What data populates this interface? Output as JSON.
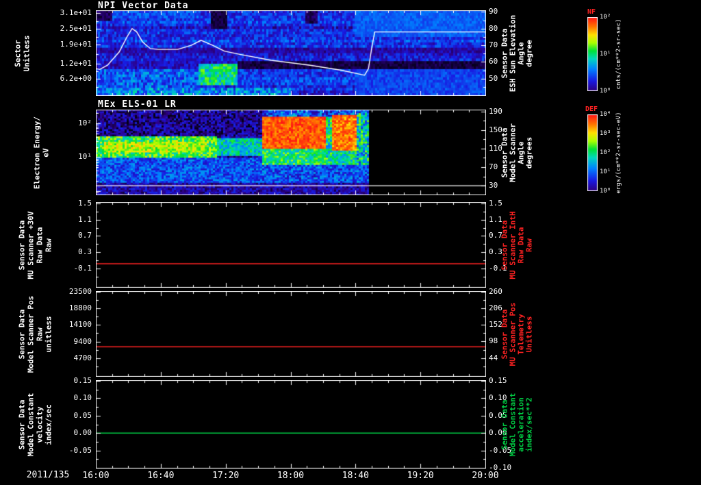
{
  "xaxis": {
    "date_label": "2011/135",
    "tick_labels": [
      "16:00",
      "16:40",
      "17:20",
      "18:00",
      "18:40",
      "19:20",
      "20:00"
    ]
  },
  "colorbars": [
    {
      "label": "NF",
      "label_color": "#ff2222",
      "unit": "cnts/(cm**2-sr-sec)",
      "ticks": [
        {
          "t": "10²",
          "f": 0.0
        },
        {
          "t": "10¹",
          "f": 0.5
        },
        {
          "t": "10⁰",
          "f": 1.0
        }
      ]
    },
    {
      "label": "DEF",
      "label_color": "#ff2222",
      "unit": "ergs/(cm**2-sr-sec-eV)",
      "ticks": [
        {
          "t": "10⁴",
          "f": 0.0
        },
        {
          "t": "10³",
          "f": 0.25
        },
        {
          "t": "10²",
          "f": 0.5
        },
        {
          "t": "10¹",
          "f": 0.75
        },
        {
          "t": "10⁰",
          "f": 1.0
        }
      ]
    }
  ],
  "chart_data": [
    {
      "type": "spectrogram",
      "title": "NPI Vector Data",
      "left_axis": {
        "label_lines": [
          "Sector",
          "Unitless"
        ],
        "color": "#ffffff",
        "scale": "linear",
        "range": [
          0,
          32
        ],
        "ticks": [
          {
            "v": 31,
            "t": "3.1e+01"
          },
          {
            "v": 25,
            "t": "2.5e+01"
          },
          {
            "v": 19,
            "t": "1.9e+01"
          },
          {
            "v": 12,
            "t": "1.2e+01"
          },
          {
            "v": 6.2,
            "t": "6.2e+00"
          }
        ]
      },
      "right_axis": {
        "label_lines": [
          "Sensor Data",
          "ESH Sun Elevation",
          "Angle",
          "degree"
        ],
        "color": "#ffffff",
        "scale": "linear",
        "range": [
          40,
          91
        ],
        "ticks": [
          {
            "v": 90,
            "t": "90"
          },
          {
            "v": 80,
            "t": "80"
          },
          {
            "v": 70,
            "t": "70"
          },
          {
            "v": 60,
            "t": "60"
          },
          {
            "v": 50,
            "t": "50"
          }
        ]
      },
      "overlay": {
        "name": "ESH Sun Elevation Angle",
        "axis": "right",
        "color": "#ffffff",
        "points": [
          [
            0,
            56
          ],
          [
            0.01,
            55.5
          ],
          [
            0.03,
            58
          ],
          [
            0.06,
            66
          ],
          [
            0.08,
            75
          ],
          [
            0.093,
            80
          ],
          [
            0.105,
            78
          ],
          [
            0.12,
            72
          ],
          [
            0.14,
            68
          ],
          [
            0.16,
            67.5
          ],
          [
            0.21,
            67.5
          ],
          [
            0.245,
            70
          ],
          [
            0.27,
            73
          ],
          [
            0.3,
            70
          ],
          [
            0.33,
            66.5
          ],
          [
            0.37,
            64.5
          ],
          [
            0.45,
            61
          ],
          [
            0.55,
            58
          ],
          [
            0.63,
            55
          ],
          [
            0.68,
            52.5
          ],
          [
            0.69,
            52
          ],
          [
            0.7,
            56
          ],
          [
            0.708,
            68
          ],
          [
            0.716,
            78
          ],
          [
            0.75,
            78
          ],
          [
            1,
            78
          ]
        ]
      },
      "spectro": {
        "rows": 32,
        "cols": 190,
        "seed": 11,
        "data_end": 1,
        "base": {
          "v": 0.22,
          "j": 0.1,
          "row_j": 0.07
        },
        "regions": [
          {
            "x0": 0,
            "x1": 0.04,
            "r0": 0,
            "r1": 3,
            "v": 0.05,
            "j": 0.04
          },
          {
            "x0": 0.04,
            "x1": 0.26,
            "r0": 0,
            "r1": 2,
            "v": 0.28,
            "j": 0.08
          },
          {
            "x0": 0.29,
            "x1": 0.335,
            "r0": 0,
            "r1": 6,
            "v": 0.03,
            "j": 0.03
          },
          {
            "x0": 0.535,
            "x1": 0.565,
            "r0": 0,
            "r1": 4,
            "v": 0.05,
            "j": 0.04
          },
          {
            "x0": 0,
            "x1": 1,
            "r0": 14,
            "r1": 15,
            "v": 0.12,
            "j": 0.06
          },
          {
            "x0": 0,
            "x1": 0.36,
            "r0": 19,
            "r1": 21,
            "v": 0.15,
            "j": 0.08
          },
          {
            "x0": 0.36,
            "x1": 1,
            "r0": 19,
            "r1": 21,
            "v": 0.03,
            "j": 0.03
          },
          {
            "x0": 0,
            "x1": 0.26,
            "r0": 22,
            "r1": 31,
            "v": 0.3,
            "j": 0.13
          },
          {
            "x0": 0.26,
            "x1": 0.36,
            "r0": 20,
            "r1": 27,
            "v": 0.52,
            "j": 0.14
          },
          {
            "x0": 0.66,
            "x1": 1,
            "r0": 0,
            "r1": 9,
            "v": 0.3,
            "j": 0.05
          },
          {
            "x0": 0.66,
            "x1": 1,
            "r0": 22,
            "r1": 31,
            "v": 0.26,
            "j": 0.06
          },
          {
            "x0": 0,
            "x1": 0.5,
            "r0": 29,
            "r1": 31,
            "v": 0.36,
            "j": 0.15
          }
        ]
      }
    },
    {
      "type": "spectrogram",
      "title": "MEx ELS-01 LR",
      "left_axis": {
        "label_lines": [
          "Electron Energy/",
          "eV"
        ],
        "color": "#ffffff",
        "scale": "log",
        "range": [
          0.8,
          250
        ],
        "ticks": [
          {
            "v": 100,
            "t": "10²"
          },
          {
            "v": 10,
            "t": "10¹"
          }
        ]
      },
      "right_axis": {
        "label_lines": [
          "Sensor Data",
          "Model Scanner",
          "Angle",
          "degrees"
        ],
        "color": "#ffffff",
        "scale": "linear",
        "range": [
          11,
          194
        ],
        "ticks": [
          {
            "v": 190,
            "t": "190"
          },
          {
            "v": 150,
            "t": "150"
          },
          {
            "v": 110,
            "t": "110"
          },
          {
            "v": 70,
            "t": "70"
          },
          {
            "v": 30,
            "t": "30"
          }
        ]
      },
      "overlay": {
        "name": "Model Scanner Angle",
        "axis": "right",
        "color": "#ffffff",
        "points": [
          [
            0,
            30
          ],
          [
            1,
            30
          ]
        ]
      },
      "spectro": {
        "rows": 48,
        "cols": 190,
        "seed": 23,
        "data_end": 0.695,
        "base": {
          "v": 0.15,
          "j": 0.13,
          "row_j": 0.03
        },
        "regions": [
          {
            "x0": 0,
            "x1": 0.425,
            "r0": 0,
            "r1": 14,
            "v": 0.1,
            "j": 0.12
          },
          {
            "x0": 0,
            "x1": 0.31,
            "r0": 15,
            "r1": 26,
            "v": 0.6,
            "j": 0.16
          },
          {
            "x0": 0.02,
            "x1": 0.28,
            "r0": 18,
            "r1": 23,
            "v": 0.7,
            "j": 0.12
          },
          {
            "x0": 0.31,
            "x1": 0.425,
            "r0": 16,
            "r1": 25,
            "v": 0.47,
            "j": 0.14
          },
          {
            "x0": 0,
            "x1": 0.425,
            "r0": 27,
            "r1": 40,
            "v": 0.28,
            "j": 0.12
          },
          {
            "x0": 0,
            "x1": 0.695,
            "r0": 41,
            "r1": 47,
            "v": 0.13,
            "j": 0.1
          },
          {
            "x0": 0.425,
            "x1": 0.695,
            "r0": 0,
            "r1": 3,
            "v": 0.28,
            "j": 0.18
          },
          {
            "x0": 0.425,
            "x1": 0.585,
            "r0": 4,
            "r1": 21,
            "v": 0.92,
            "j": 0.08
          },
          {
            "x0": 0.425,
            "x1": 0.585,
            "r0": 22,
            "r1": 30,
            "v": 0.55,
            "j": 0.14
          },
          {
            "x0": 0.585,
            "x1": 0.605,
            "r0": 4,
            "r1": 30,
            "v": 0.5,
            "j": 0.18
          },
          {
            "x0": 0.605,
            "x1": 0.665,
            "r0": 3,
            "r1": 22,
            "v": 0.88,
            "j": 0.1
          },
          {
            "x0": 0.605,
            "x1": 0.665,
            "r0": 23,
            "r1": 32,
            "v": 0.5,
            "j": 0.14
          },
          {
            "x0": 0.665,
            "x1": 0.695,
            "r0": 2,
            "r1": 34,
            "v": 0.45,
            "j": 0.22
          },
          {
            "x0": 0.425,
            "x1": 0.695,
            "r0": 31,
            "r1": 40,
            "v": 0.28,
            "j": 0.14
          }
        ]
      }
    },
    {
      "type": "line",
      "title": "",
      "left_axis": {
        "label_lines": [
          "Sensor Data",
          "MU Scanner +30V",
          "Raw Data",
          "Raw"
        ],
        "color": "#ffffff",
        "scale": "linear",
        "range": [
          -0.55,
          1.53
        ],
        "ticks": [
          {
            "v": 1.5,
            "t": "1.5"
          },
          {
            "v": 1.1,
            "t": "1.1"
          },
          {
            "v": 0.7,
            "t": "0.7"
          },
          {
            "v": 0.3,
            "t": "0.3"
          },
          {
            "v": -0.1,
            "t": "-0.1"
          }
        ]
      },
      "right_axis": {
        "label_lines": [
          "Sensor Data",
          "MU Scanner IntH",
          "Raw Data",
          "Raw"
        ],
        "color": "#ff2222",
        "scale": "linear",
        "range": [
          -0.55,
          1.53
        ],
        "ticks": [
          {
            "v": 1.5,
            "t": "1.5"
          },
          {
            "v": 1.1,
            "t": "1.1"
          },
          {
            "v": 0.7,
            "t": "0.7"
          },
          {
            "v": 0.3,
            "t": "0.3"
          },
          {
            "v": -0.1,
            "t": "-0.1"
          }
        ]
      },
      "series": [
        {
          "name": "MU Scanner IntH Raw Data",
          "axis": "left",
          "color": "#ff2222",
          "points": [
            [
              0,
              0.02
            ],
            [
              1,
              0.02
            ]
          ]
        }
      ]
    },
    {
      "type": "line",
      "title": "",
      "left_axis": {
        "label_lines": [
          "Sensor Data",
          "Model Scanner Pos",
          "Raw",
          "unitless"
        ],
        "color": "#ffffff",
        "scale": "linear",
        "range": [
          -400,
          23700
        ],
        "ticks": [
          {
            "v": 23500,
            "t": "23500"
          },
          {
            "v": 18800,
            "t": "18800"
          },
          {
            "v": 14100,
            "t": "14100"
          },
          {
            "v": 9400,
            "t": "9400"
          },
          {
            "v": 4700,
            "t": "4700"
          }
        ]
      },
      "right_axis": {
        "label_lines": [
          "Sensor Data",
          "MU Scanner Pos",
          "Telemetry",
          "Unitless"
        ],
        "color": "#ff2222",
        "scale": "linear",
        "range": [
          -15,
          262
        ],
        "ticks": [
          {
            "v": 260,
            "t": "260"
          },
          {
            "v": 206,
            "t": "206"
          },
          {
            "v": 152,
            "t": "152"
          },
          {
            "v": 98,
            "t": "98"
          },
          {
            "v": 44,
            "t": "44"
          }
        ]
      },
      "series": [
        {
          "name": "Model Scanner Pos Raw",
          "axis": "left",
          "color": "#ff2222",
          "points": [
            [
              0,
              7900
            ],
            [
              1,
              7900
            ]
          ]
        }
      ]
    },
    {
      "type": "line",
      "title": "",
      "left_axis": {
        "label_lines": [
          "Sensor Data",
          "Model Constant",
          "velocity",
          "index/sec"
        ],
        "color": "#ffffff",
        "scale": "linear",
        "range": [
          -0.1,
          0.152
        ],
        "ticks": [
          {
            "v": 0.15,
            "t": "0.15"
          },
          {
            "v": 0.1,
            "t": "0.10"
          },
          {
            "v": 0.05,
            "t": "0.05"
          },
          {
            "v": 0,
            "t": "0.00"
          },
          {
            "v": -0.05,
            "t": "-0.05"
          }
        ]
      },
      "right_axis": {
        "label_lines": [
          "Sensor Data",
          "Model Constant",
          "acceleration",
          "index/sec**2"
        ],
        "color": "#00cc44",
        "scale": "linear",
        "range": [
          -0.1,
          0.152
        ],
        "ticks": [
          {
            "v": 0.15,
            "t": "0.15"
          },
          {
            "v": 0.1,
            "t": "0.10"
          },
          {
            "v": 0.05,
            "t": "0.05"
          },
          {
            "v": 0,
            "t": "0.00"
          },
          {
            "v": -0.05,
            "t": "-0.05"
          },
          {
            "v": -0.1,
            "t": "-0.10"
          }
        ]
      },
      "series": [
        {
          "name": "Model Constant velocity",
          "axis": "left",
          "color": "#00cc44",
          "points": [
            [
              0,
              0
            ],
            [
              1,
              0
            ]
          ]
        }
      ]
    }
  ]
}
